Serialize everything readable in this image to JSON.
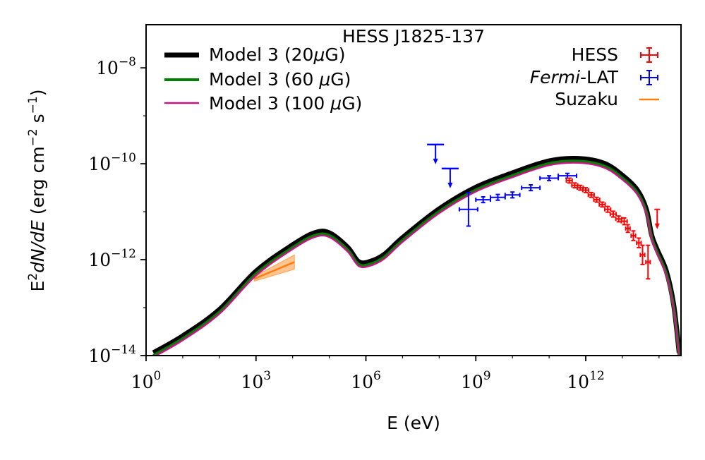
{
  "chart_data": {
    "type": "line",
    "title": "HESS J1825-137",
    "xlabel": "E (eV)",
    "ylabel_prefix": "E",
    "ylabel_sup": "2",
    "ylabel_math": "dN/dE",
    "ylabel_units": " (erg cm",
    "ylabel_units_sup1": "−2",
    "ylabel_units_mid": " s",
    "ylabel_units_sup2": "−1",
    "ylabel_units_end": ")",
    "xscale": "log",
    "yscale": "log",
    "xlim_log10": [
      0,
      14.6
    ],
    "ylim_log10": [
      -14,
      -7.1
    ],
    "xticks": [
      {
        "base": "10",
        "exp": "0",
        "log10": 0
      },
      {
        "base": "10",
        "exp": "3",
        "log10": 3
      },
      {
        "base": "10",
        "exp": "6",
        "log10": 6
      },
      {
        "base": "10",
        "exp": "9",
        "log10": 9
      },
      {
        "base": "10",
        "exp": "12",
        "log10": 12
      }
    ],
    "yticks": [
      {
        "base": "10",
        "exp": "−14",
        "log10": -14
      },
      {
        "base": "10",
        "exp": "−12",
        "log10": -12
      },
      {
        "base": "10",
        "exp": "−10",
        "log10": -10
      },
      {
        "base": "10",
        "exp": "−8",
        "log10": -8
      }
    ],
    "models": [
      {
        "name": "Model 3 (20μG)",
        "color": "#000000",
        "offset": 0.06,
        "points": [
          [
            0.2,
            -14.0
          ],
          [
            1.0,
            -13.65
          ],
          [
            2.0,
            -13.1
          ],
          [
            3.0,
            -12.3
          ],
          [
            4.0,
            -11.75
          ],
          [
            4.6,
            -11.5
          ],
          [
            5.0,
            -11.5
          ],
          [
            5.5,
            -11.8
          ],
          [
            5.8,
            -12.1
          ],
          [
            6.1,
            -12.1
          ],
          [
            6.5,
            -11.95
          ],
          [
            7.0,
            -11.6
          ],
          [
            8.0,
            -11.0
          ],
          [
            9.0,
            -10.55
          ],
          [
            10.0,
            -10.25
          ],
          [
            11.0,
            -10.0
          ],
          [
            11.8,
            -9.95
          ],
          [
            12.5,
            -10.05
          ],
          [
            13.0,
            -10.3
          ],
          [
            13.4,
            -10.6
          ],
          [
            13.65,
            -11.0
          ],
          [
            13.8,
            -11.55
          ],
          [
            13.95,
            -11.85
          ],
          [
            14.2,
            -12.3
          ],
          [
            14.4,
            -13.0
          ],
          [
            14.55,
            -14.0
          ]
        ]
      },
      {
        "name": "Model 3 (60 μG)",
        "color": "#008000",
        "offset": 0.0,
        "points": [
          [
            0.2,
            -14.0
          ],
          [
            1.0,
            -13.65
          ],
          [
            2.0,
            -13.1
          ],
          [
            3.0,
            -12.3
          ],
          [
            4.0,
            -11.75
          ],
          [
            4.6,
            -11.5
          ],
          [
            5.0,
            -11.5
          ],
          [
            5.5,
            -11.8
          ],
          [
            5.8,
            -12.1
          ],
          [
            6.1,
            -12.1
          ],
          [
            6.5,
            -11.95
          ],
          [
            7.0,
            -11.6
          ],
          [
            8.0,
            -11.0
          ],
          [
            9.0,
            -10.55
          ],
          [
            10.0,
            -10.25
          ],
          [
            11.0,
            -10.0
          ],
          [
            11.8,
            -9.95
          ],
          [
            12.5,
            -10.05
          ],
          [
            13.0,
            -10.3
          ],
          [
            13.4,
            -10.6
          ],
          [
            13.65,
            -11.0
          ],
          [
            13.8,
            -11.55
          ],
          [
            13.95,
            -11.85
          ],
          [
            14.2,
            -12.3
          ],
          [
            14.4,
            -13.0
          ],
          [
            14.55,
            -14.0
          ]
        ]
      },
      {
        "name": "Model 3 (100 μG)",
        "color": "#c71585",
        "offset": -0.03,
        "points": [
          [
            0.2,
            -14.0
          ],
          [
            1.0,
            -13.65
          ],
          [
            2.0,
            -13.1
          ],
          [
            3.0,
            -12.3
          ],
          [
            4.0,
            -11.75
          ],
          [
            4.6,
            -11.5
          ],
          [
            5.0,
            -11.5
          ],
          [
            5.5,
            -11.8
          ],
          [
            5.8,
            -12.1
          ],
          [
            6.1,
            -12.1
          ],
          [
            6.5,
            -11.95
          ],
          [
            7.0,
            -11.6
          ],
          [
            8.0,
            -11.0
          ],
          [
            9.0,
            -10.55
          ],
          [
            10.0,
            -10.25
          ],
          [
            11.0,
            -10.0
          ],
          [
            11.8,
            -9.95
          ],
          [
            12.5,
            -10.05
          ],
          [
            13.0,
            -10.3
          ],
          [
            13.4,
            -10.6
          ],
          [
            13.65,
            -11.0
          ],
          [
            13.8,
            -11.55
          ],
          [
            13.95,
            -11.85
          ],
          [
            14.2,
            -12.3
          ],
          [
            14.4,
            -13.0
          ],
          [
            14.55,
            -14.0
          ]
        ]
      }
    ],
    "hess": {
      "name": "HESS",
      "color": "#ff0000",
      "points": [
        {
          "x": 11.55,
          "y": -10.35,
          "xerr": 0.08,
          "yerr": 0.05
        },
        {
          "x": 11.7,
          "y": -10.45,
          "xerr": 0.08,
          "yerr": 0.05
        },
        {
          "x": 11.85,
          "y": -10.5,
          "xerr": 0.08,
          "yerr": 0.05
        },
        {
          "x": 12.0,
          "y": -10.55,
          "xerr": 0.08,
          "yerr": 0.05
        },
        {
          "x": 12.15,
          "y": -10.65,
          "xerr": 0.08,
          "yerr": 0.05
        },
        {
          "x": 12.3,
          "y": -10.75,
          "xerr": 0.08,
          "yerr": 0.05
        },
        {
          "x": 12.45,
          "y": -10.85,
          "xerr": 0.08,
          "yerr": 0.05
        },
        {
          "x": 12.6,
          "y": -10.95,
          "xerr": 0.08,
          "yerr": 0.06
        },
        {
          "x": 12.75,
          "y": -11.05,
          "xerr": 0.08,
          "yerr": 0.06
        },
        {
          "x": 12.9,
          "y": -11.15,
          "xerr": 0.08,
          "yerr": 0.06
        },
        {
          "x": 13.05,
          "y": -11.2,
          "xerr": 0.08,
          "yerr": 0.07
        },
        {
          "x": 13.15,
          "y": -11.35,
          "xerr": 0.06,
          "yerr": 0.08
        },
        {
          "x": 13.3,
          "y": -11.5,
          "xerr": 0.06,
          "yerr": 0.1
        },
        {
          "x": 13.45,
          "y": -11.65,
          "xerr": 0.06,
          "yerr": 0.1
        },
        {
          "x": 13.55,
          "y": -11.9,
          "xerr": 0.06,
          "yerr": 0.2
        },
        {
          "x": 13.7,
          "y": -12.05,
          "xerr": 0.06,
          "yerr": 0.35
        }
      ],
      "upper_limits": [
        {
          "x": 13.95,
          "y": -10.95
        }
      ]
    },
    "fermi": {
      "name": "Fermi-LAT",
      "color": "#0000ff",
      "points": [
        {
          "x": 8.8,
          "y": -10.95,
          "xerr": 0.25,
          "yerr": 0.35
        },
        {
          "x": 9.2,
          "y": -10.75,
          "xerr": 0.2,
          "yerr": 0.06
        },
        {
          "x": 9.6,
          "y": -10.7,
          "xerr": 0.2,
          "yerr": 0.06
        },
        {
          "x": 10.0,
          "y": -10.65,
          "xerr": 0.2,
          "yerr": 0.06
        },
        {
          "x": 10.5,
          "y": -10.5,
          "xerr": 0.25,
          "yerr": 0.06
        },
        {
          "x": 11.0,
          "y": -10.3,
          "xerr": 0.25,
          "yerr": 0.05
        },
        {
          "x": 11.5,
          "y": -10.25,
          "xerr": 0.25,
          "yerr": 0.05
        }
      ],
      "upper_limits": [
        {
          "x": 7.9,
          "y": -9.6
        },
        {
          "x": 8.3,
          "y": -10.1
        }
      ]
    },
    "suzaku": {
      "name": "Suzaku",
      "color": "#ff7f0e",
      "band": [
        [
          2.95,
          -12.35
        ],
        [
          4.05,
          -11.9
        ],
        [
          4.05,
          -12.2
        ],
        [
          2.95,
          -12.45
        ]
      ],
      "line": [
        [
          2.95,
          -12.4
        ],
        [
          4.05,
          -12.05
        ]
      ]
    },
    "legend_left": [
      {
        "label": "Model 3 (20",
        "mu": "μ",
        "tail": "G)",
        "color": "#000000"
      },
      {
        "label": "Model 3 (60 ",
        "mu": "μ",
        "tail": "G)",
        "color": "#008000"
      },
      {
        "label": "Model 3 (100 ",
        "mu": "μ",
        "tail": "G)",
        "color": "#c71585"
      }
    ],
    "legend_right": [
      {
        "label": "HESS",
        "color": "#ff0000"
      },
      {
        "label_italic": "Fermi",
        "label": "-LAT",
        "color": "#0000ff"
      },
      {
        "label": "Suzaku",
        "color": "#ff7f0e"
      }
    ]
  }
}
